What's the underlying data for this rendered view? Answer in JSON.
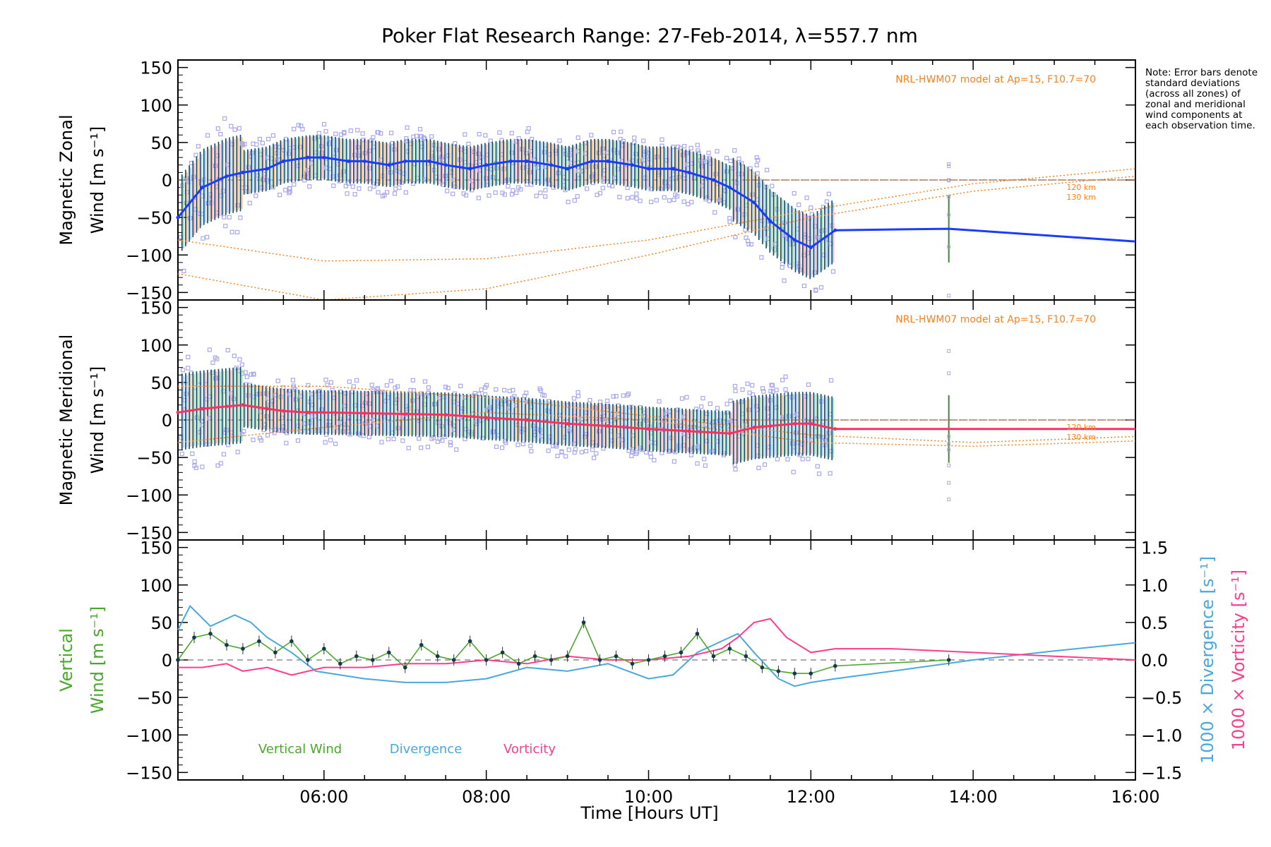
{
  "title": "Poker Flat Research Range: 27-Feb-2014, λ=557.7 nm",
  "note": "Note: Error bars denote standard deviations (across all zones) of zonal and meridional wind components at each observation time.",
  "model_label": "NRL-HWM07 model at Ap=15, F10.7=70",
  "model_alt_labels": [
    "120 km",
    "130 km"
  ],
  "x_axis": {
    "label": "Time [Hours UT]",
    "range": [
      4.2,
      16.0
    ],
    "ticks": [
      "06:00",
      "08:00",
      "10:00",
      "12:00",
      "14:00",
      "16:00"
    ],
    "tick_values": [
      6,
      8,
      10,
      12,
      14,
      16
    ]
  },
  "y_ticks": [
    "150",
    "100",
    "50",
    "0",
    "−50",
    "−100",
    "−150"
  ],
  "y_tick_values": [
    150,
    100,
    50,
    0,
    -50,
    -100,
    -150
  ],
  "right_ticks": [
    "1.5",
    "1.0",
    "0.5",
    "0.0",
    "−0.5",
    "−1.0",
    "−1.5"
  ],
  "right_tick_values": [
    1.5,
    1.0,
    0.5,
    0.0,
    -0.5,
    -1.0,
    -1.5
  ],
  "panels": {
    "zonal": {
      "ylabel_line1": "Magnetic Zonal",
      "ylabel_line2": "Wind [m s⁻¹]"
    },
    "meridional": {
      "ylabel_line1": "Magnetic Meridional",
      "ylabel_line2": "Wind [m s⁻¹]"
    },
    "vertical": {
      "ylabel_line1": "Vertical",
      "ylabel_line2": "Wind [m s⁻¹]",
      "right_label_div": "1000 × Divergence [s⁻¹]",
      "right_label_vort": "1000 × Vorticity [s⁻¹]"
    }
  },
  "legend": {
    "vertical": "Vertical Wind",
    "divergence": "Divergence",
    "vorticity": "Vorticity"
  },
  "colors": {
    "zonal": "#1a3cff",
    "meridional": "#ff3060",
    "vertical": "#4aa82a",
    "divergence": "#4aa8dc",
    "vorticity": "#ff3d8c",
    "model": "#ff7f1a",
    "scatter": "#a8a8ee",
    "errbar": "#0b4a6a"
  },
  "chart_data": [
    {
      "type": "line",
      "panel": "zonal",
      "ylim": [
        -160,
        160
      ],
      "x": [
        4.2,
        4.5,
        4.8,
        5.0,
        5.3,
        5.5,
        5.8,
        6.0,
        6.3,
        6.5,
        6.8,
        7.0,
        7.3,
        7.5,
        7.8,
        8.0,
        8.3,
        8.5,
        8.8,
        9.0,
        9.3,
        9.5,
        9.8,
        10.0,
        10.3,
        10.5,
        10.8,
        11.0,
        11.3,
        11.5,
        11.8,
        12.0,
        12.3,
        13.7,
        16.0
      ],
      "values": [
        -50,
        -10,
        5,
        10,
        15,
        25,
        30,
        30,
        25,
        25,
        20,
        25,
        25,
        20,
        15,
        20,
        25,
        25,
        20,
        15,
        25,
        25,
        20,
        15,
        15,
        10,
        0,
        -10,
        -30,
        -55,
        -80,
        -90,
        -67,
        -65,
        -82
      ],
      "model_120km_x": [
        4.2,
        6.0,
        8.0,
        10.0,
        12.0,
        14.0,
        16.0
      ],
      "model_120km": [
        -80,
        -108,
        -105,
        -80,
        -40,
        -5,
        15
      ],
      "model_130km_x": [
        4.2,
        6.0,
        8.0,
        10.0,
        12.0,
        14.0,
        16.0
      ],
      "model_130km": [
        -125,
        -160,
        -145,
        -100,
        -50,
        -15,
        5
      ]
    },
    {
      "type": "line",
      "panel": "meridional",
      "ylim": [
        -160,
        160
      ],
      "x": [
        4.2,
        4.5,
        4.8,
        5.0,
        5.3,
        5.5,
        5.8,
        6.0,
        6.5,
        7.0,
        7.5,
        8.0,
        8.5,
        9.0,
        9.5,
        10.0,
        10.5,
        11.0,
        11.3,
        11.5,
        11.8,
        12.0,
        12.3,
        13.7,
        16.0
      ],
      "values": [
        10,
        15,
        18,
        20,
        15,
        12,
        10,
        10,
        9,
        8,
        7,
        3,
        0,
        -5,
        -8,
        -12,
        -15,
        -18,
        -10,
        -8,
        -5,
        -5,
        -12,
        -12,
        -12
      ],
      "model_120km_x": [
        4.2,
        6.0,
        8.0,
        10.0,
        12.0,
        14.0,
        16.0
      ],
      "model_120km": [
        45,
        45,
        30,
        5,
        -20,
        -30,
        -22
      ],
      "model_130km_x": [
        4.2,
        6.0,
        8.0,
        10.0,
        12.0,
        14.0,
        16.0
      ],
      "model_130km": [
        -30,
        -10,
        10,
        0,
        -30,
        -35,
        -28
      ]
    },
    {
      "type": "line",
      "panel": "vertical",
      "ylim": [
        -160,
        160
      ],
      "series": [
        {
          "name": "Vertical Wind",
          "x": [
            4.2,
            4.4,
            4.6,
            4.8,
            5.0,
            5.2,
            5.4,
            5.6,
            5.8,
            6.0,
            6.2,
            6.4,
            6.6,
            6.8,
            7.0,
            7.2,
            7.4,
            7.6,
            7.8,
            8.0,
            8.2,
            8.4,
            8.6,
            8.8,
            9.0,
            9.2,
            9.4,
            9.6,
            9.8,
            10.0,
            10.2,
            10.4,
            10.6,
            10.8,
            11.0,
            11.2,
            11.4,
            11.6,
            11.8,
            12.0,
            12.3,
            13.7
          ],
          "values": [
            0,
            30,
            35,
            20,
            15,
            25,
            10,
            25,
            0,
            15,
            -5,
            5,
            0,
            10,
            -10,
            20,
            5,
            0,
            25,
            0,
            10,
            -5,
            5,
            0,
            5,
            50,
            0,
            5,
            -5,
            0,
            5,
            10,
            35,
            5,
            15,
            5,
            -10,
            -15,
            -18,
            -18,
            -8,
            0
          ]
        },
        {
          "name": "Divergence",
          "axis": "right",
          "x": [
            4.2,
            4.35,
            4.6,
            4.9,
            5.1,
            5.3,
            5.6,
            5.9,
            6.2,
            6.5,
            7.0,
            7.5,
            8.0,
            8.5,
            9.0,
            9.5,
            10.0,
            10.3,
            10.6,
            10.9,
            11.1,
            11.3,
            11.6,
            11.8,
            12.0,
            12.3,
            13.0,
            14.0,
            15.0,
            16.0
          ],
          "values": [
            0.4,
            0.72,
            0.45,
            0.6,
            0.5,
            0.3,
            0.1,
            -0.15,
            -0.2,
            -0.25,
            -0.3,
            -0.3,
            -0.25,
            -0.1,
            -0.15,
            -0.05,
            -0.25,
            -0.2,
            0.1,
            0.25,
            0.35,
            0.1,
            -0.25,
            -0.35,
            -0.3,
            -0.25,
            -0.15,
            0.0,
            0.12,
            0.23
          ]
        },
        {
          "name": "Vorticity",
          "axis": "right",
          "x": [
            4.2,
            4.5,
            4.8,
            5.0,
            5.3,
            5.6,
            6.0,
            6.5,
            7.0,
            7.5,
            8.0,
            8.5,
            9.0,
            9.5,
            10.0,
            10.5,
            10.9,
            11.1,
            11.3,
            11.5,
            11.7,
            12.0,
            12.3,
            13.0,
            14.0,
            15.0,
            16.0
          ],
          "values": [
            -0.1,
            -0.1,
            -0.05,
            -0.15,
            -0.1,
            -0.2,
            -0.1,
            -0.1,
            -0.05,
            -0.05,
            0.0,
            -0.05,
            0.05,
            0.0,
            0.0,
            0.05,
            0.15,
            0.3,
            0.5,
            0.55,
            0.3,
            0.1,
            0.15,
            0.15,
            0.1,
            0.05,
            0.0
          ]
        }
      ],
      "right_ylim": [
        -1.6,
        1.6
      ]
    }
  ]
}
